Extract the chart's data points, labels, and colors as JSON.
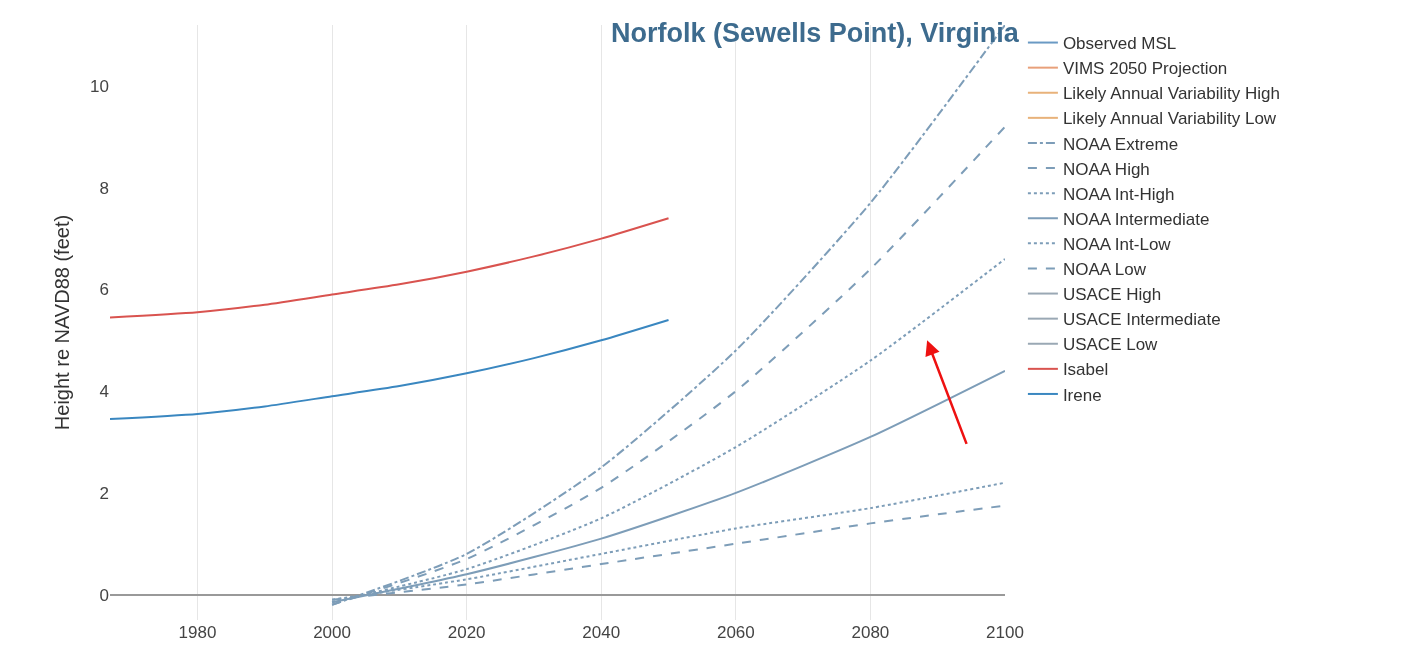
{
  "chart_data": {
    "type": "line",
    "title": "Norfolk (Sewells Point), Virginia",
    "ylabel": "Height re NAVD88 (feet)",
    "x": [
      2000,
      2020,
      2040,
      2060,
      2080,
      2100
    ],
    "xlim": [
      1967,
      2100
    ],
    "xticks": [
      1980,
      2000,
      2020,
      2040,
      2060,
      2080,
      2100
    ],
    "ylim": [
      -0.5,
      11.2
    ],
    "yticks": [
      0,
      2,
      4,
      6,
      8,
      10
    ],
    "grid": "x",
    "legend": "right",
    "series": [
      {
        "name": "Observed MSL",
        "color": "#6a9ac4",
        "values": [
          null,
          null,
          null,
          null,
          null,
          null
        ]
      },
      {
        "name": "VIMS 2050 Projection",
        "color": "#e8a07a",
        "values": [
          null,
          null,
          null,
          null,
          null,
          null
        ]
      },
      {
        "name": "Likely Annual Variability High",
        "color": "#e8b27a",
        "values": [
          null,
          null,
          null,
          null,
          null,
          null
        ]
      },
      {
        "name": "Likely Annual Variability Low",
        "color": "#e8b27a",
        "values": [
          null,
          null,
          null,
          null,
          null,
          null
        ]
      },
      {
        "name": "NOAA Extreme",
        "color": "#7d9db8",
        "line_style": "dashdot",
        "values": [
          -0.2,
          0.8,
          2.5,
          4.8,
          7.7,
          11.2
        ]
      },
      {
        "name": "NOAA High",
        "color": "#7d9db8",
        "line_style": "dashed",
        "values": [
          -0.2,
          0.7,
          2.1,
          4.0,
          6.4,
          9.2
        ]
      },
      {
        "name": "NOAA Int-High",
        "color": "#7d9db8",
        "line_style": "dotted",
        "values": [
          -0.15,
          0.5,
          1.5,
          2.9,
          4.6,
          6.6
        ]
      },
      {
        "name": "NOAA Intermediate",
        "color": "#7d9db8",
        "line_style": "solid",
        "values": [
          -0.15,
          0.4,
          1.1,
          2.0,
          3.1,
          4.4
        ]
      },
      {
        "name": "NOAA Int-Low",
        "color": "#7d9db8",
        "line_style": "dotted",
        "values": [
          -0.1,
          0.3,
          0.8,
          1.3,
          1.7,
          2.2
        ]
      },
      {
        "name": "NOAA Low",
        "color": "#7d9db8",
        "line_style": "dashed",
        "values": [
          -0.1,
          0.2,
          0.6,
          1.0,
          1.4,
          1.75
        ]
      },
      {
        "name": "USACE High",
        "color": "#9aa8b4",
        "values": [
          null,
          null,
          null,
          null,
          null,
          null
        ]
      },
      {
        "name": "USACE Intermediate",
        "color": "#9aa8b4",
        "values": [
          null,
          null,
          null,
          null,
          null,
          null
        ]
      },
      {
        "name": "USACE Low",
        "color": "#9aa8b4",
        "values": [
          null,
          null,
          null,
          null,
          null,
          null
        ]
      },
      {
        "name": "Isabel",
        "color": "#d9534f",
        "line_style": "solid",
        "x": [
          1967,
          1980,
          1990,
          2000,
          2010,
          2020,
          2030,
          2040,
          2050
        ],
        "values": [
          5.45,
          5.55,
          5.7,
          5.9,
          6.1,
          6.35,
          6.65,
          7.0,
          7.4
        ]
      },
      {
        "name": "Irene",
        "color": "#3a87c0",
        "line_style": "solid",
        "x": [
          1967,
          1980,
          1990,
          2000,
          2010,
          2020,
          2030,
          2040,
          2050
        ],
        "values": [
          3.45,
          3.55,
          3.7,
          3.9,
          4.1,
          4.35,
          4.65,
          5.0,
          5.4
        ]
      }
    ]
  }
}
